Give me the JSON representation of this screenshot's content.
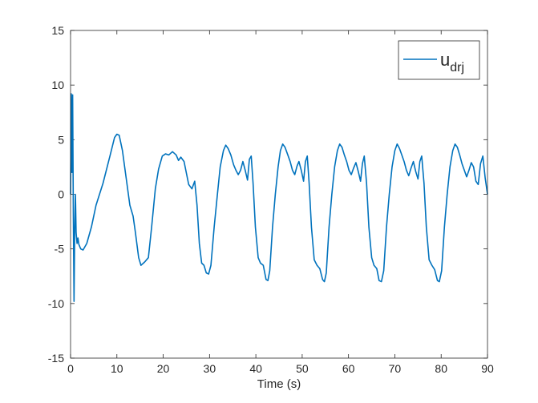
{
  "chart_data": {
    "type": "line",
    "title": "",
    "xlabel": "Time (s)",
    "ylabel": "",
    "xlim": [
      0,
      90
    ],
    "ylim": [
      -15,
      15
    ],
    "xticks": [
      0,
      10,
      20,
      30,
      40,
      50,
      60,
      70,
      80,
      90
    ],
    "yticks": [
      -15,
      -10,
      -5,
      0,
      5,
      10,
      15
    ],
    "xtick_labels": [
      "0",
      "10",
      "20",
      "30",
      "40",
      "50",
      "60",
      "70",
      "80",
      "90"
    ],
    "ytick_labels": [
      "-15",
      "-10",
      "-5",
      "0",
      "5",
      "10",
      "15"
    ],
    "grid": false,
    "box": true,
    "legend": {
      "position": "top-right",
      "entries": [
        {
          "main": "u",
          "sub": "drj"
        }
      ]
    },
    "series": [
      {
        "name": "u_drj",
        "color": "#0072BD",
        "points": [
          [
            0,
            0
          ],
          [
            0.15,
            9.2
          ],
          [
            0.3,
            2
          ],
          [
            0.45,
            9.1
          ],
          [
            0.6,
            -2
          ],
          [
            0.75,
            -9.8
          ],
          [
            0.9,
            -3
          ],
          [
            1.05,
            0
          ],
          [
            1.2,
            -3.5
          ],
          [
            1.4,
            -4.5
          ],
          [
            1.6,
            -4
          ],
          [
            1.8,
            -4.6
          ],
          [
            2.2,
            -5
          ],
          [
            2.7,
            -5.1
          ],
          [
            3.5,
            -4.5
          ],
          [
            4.5,
            -3
          ],
          [
            5.5,
            -1
          ],
          [
            7,
            1
          ],
          [
            8.5,
            3.5
          ],
          [
            9.5,
            5.2
          ],
          [
            10,
            5.5
          ],
          [
            10.5,
            5.4
          ],
          [
            11.2,
            4
          ],
          [
            12,
            1.5
          ],
          [
            12.8,
            -1
          ],
          [
            13.5,
            -2
          ],
          [
            14,
            -3.5
          ],
          [
            14.7,
            -5.8
          ],
          [
            15.2,
            -6.5
          ],
          [
            16,
            -6.2
          ],
          [
            16.8,
            -5.8
          ],
          [
            17.5,
            -3
          ],
          [
            18.3,
            0.5
          ],
          [
            19,
            2.3
          ],
          [
            19.8,
            3.5
          ],
          [
            20.5,
            3.7
          ],
          [
            21.2,
            3.6
          ],
          [
            22,
            3.9
          ],
          [
            22.8,
            3.6
          ],
          [
            23.3,
            3.1
          ],
          [
            23.8,
            3.4
          ],
          [
            24.5,
            3
          ],
          [
            25.5,
            0.9
          ],
          [
            26.2,
            0.5
          ],
          [
            26.8,
            1.2
          ],
          [
            27.3,
            -1
          ],
          [
            27.8,
            -4.5
          ],
          [
            28.3,
            -6.3
          ],
          [
            28.8,
            -6.5
          ],
          [
            29.3,
            -7.2
          ],
          [
            29.8,
            -7.3
          ],
          [
            30.3,
            -6.5
          ],
          [
            31,
            -3
          ],
          [
            31.7,
            0
          ],
          [
            32.3,
            2.5
          ],
          [
            33,
            4
          ],
          [
            33.5,
            4.5
          ],
          [
            34,
            4.2
          ],
          [
            34.6,
            3.6
          ],
          [
            35.2,
            2.7
          ],
          [
            35.7,
            2.2
          ],
          [
            36.2,
            1.8
          ],
          [
            36.7,
            2.2
          ],
          [
            37.2,
            3
          ],
          [
            37.7,
            2.2
          ],
          [
            38.2,
            1.3
          ],
          [
            38.6,
            3.2
          ],
          [
            39,
            3.5
          ],
          [
            39.4,
            1
          ],
          [
            39.9,
            -3
          ],
          [
            40.5,
            -5.8
          ],
          [
            41,
            -6.3
          ],
          [
            41.6,
            -6.5
          ],
          [
            42.2,
            -7.8
          ],
          [
            42.6,
            -7.9
          ],
          [
            43,
            -7
          ],
          [
            43.6,
            -3
          ],
          [
            44.2,
            0
          ],
          [
            44.8,
            2.5
          ],
          [
            45.3,
            4
          ],
          [
            45.8,
            4.6
          ],
          [
            46.3,
            4.3
          ],
          [
            46.9,
            3.6
          ],
          [
            47.4,
            3
          ],
          [
            47.9,
            2.2
          ],
          [
            48.4,
            1.8
          ],
          [
            48.9,
            2.6
          ],
          [
            49.3,
            3
          ],
          [
            49.8,
            2.2
          ],
          [
            50.3,
            1.2
          ],
          [
            50.7,
            3
          ],
          [
            51.1,
            3.5
          ],
          [
            51.5,
            1
          ],
          [
            52,
            -3
          ],
          [
            52.6,
            -6
          ],
          [
            53.2,
            -6.5
          ],
          [
            53.8,
            -6.8
          ],
          [
            54.4,
            -7.8
          ],
          [
            54.8,
            -8
          ],
          [
            55.2,
            -7.2
          ],
          [
            55.8,
            -3
          ],
          [
            56.4,
            0
          ],
          [
            57,
            2.5
          ],
          [
            57.6,
            4
          ],
          [
            58.1,
            4.6
          ],
          [
            58.6,
            4.3
          ],
          [
            59.1,
            3.6
          ],
          [
            59.6,
            3
          ],
          [
            60.1,
            2.2
          ],
          [
            60.6,
            1.8
          ],
          [
            61.1,
            2.4
          ],
          [
            61.6,
            2.9
          ],
          [
            62.1,
            2.1
          ],
          [
            62.6,
            1.2
          ],
          [
            63,
            2.8
          ],
          [
            63.4,
            3.5
          ],
          [
            63.9,
            1
          ],
          [
            64.4,
            -3
          ],
          [
            65,
            -5.8
          ],
          [
            65.5,
            -6.5
          ],
          [
            66.1,
            -6.8
          ],
          [
            66.6,
            -7.9
          ],
          [
            67.1,
            -8
          ],
          [
            67.6,
            -7
          ],
          [
            68.2,
            -3
          ],
          [
            68.8,
            0
          ],
          [
            69.4,
            2.5
          ],
          [
            70,
            4
          ],
          [
            70.5,
            4.6
          ],
          [
            71,
            4.2
          ],
          [
            71.5,
            3.6
          ],
          [
            72,
            3
          ],
          [
            72.5,
            2.2
          ],
          [
            73,
            1.7
          ],
          [
            73.5,
            2.4
          ],
          [
            74,
            3
          ],
          [
            74.5,
            2.1
          ],
          [
            75,
            1.4
          ],
          [
            75.4,
            3
          ],
          [
            75.8,
            3.5
          ],
          [
            76.3,
            1
          ],
          [
            76.8,
            -3
          ],
          [
            77.4,
            -6
          ],
          [
            78,
            -6.5
          ],
          [
            78.6,
            -6.9
          ],
          [
            79.2,
            -7.9
          ],
          [
            79.6,
            -8
          ],
          [
            80.1,
            -7
          ],
          [
            80.7,
            -3
          ],
          [
            81.3,
            0
          ],
          [
            81.9,
            2.5
          ],
          [
            82.5,
            4
          ],
          [
            83,
            4.6
          ],
          [
            83.5,
            4.3
          ],
          [
            84,
            3.6
          ],
          [
            84.5,
            2.8
          ],
          [
            85,
            2.2
          ],
          [
            85.5,
            1.6
          ],
          [
            86,
            2.2
          ],
          [
            86.5,
            2.9
          ],
          [
            87,
            2.5
          ],
          [
            87.5,
            1.2
          ],
          [
            88,
            0.9
          ],
          [
            88.5,
            2.8
          ],
          [
            89,
            3.5
          ],
          [
            89.5,
            1.5
          ],
          [
            90,
            0
          ]
        ]
      }
    ]
  }
}
